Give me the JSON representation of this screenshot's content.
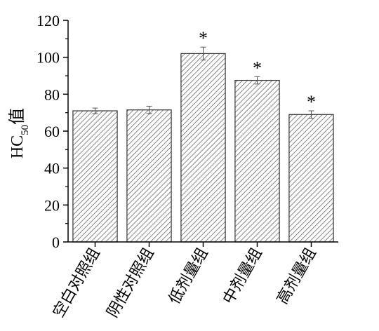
{
  "chart_data": {
    "type": "bar",
    "ylabel": {
      "main": "HC",
      "sub": "50",
      "suffix": "值"
    },
    "ylim": [
      0,
      120
    ],
    "yticks": [
      0,
      20,
      40,
      60,
      80,
      100,
      120
    ],
    "categories": [
      "空白对照组",
      "阴性对照组",
      "低剂量组",
      "中剂量组",
      "高剂量组"
    ],
    "values": [
      71,
      71.5,
      102,
      87.5,
      69
    ],
    "errors": [
      1.5,
      2,
      3.5,
      2,
      2
    ],
    "annotations": [
      "",
      "",
      "*",
      "*",
      "*"
    ],
    "bar_fill": "hatched",
    "bar_color": "#555555",
    "grid": false,
    "legend": "none"
  }
}
